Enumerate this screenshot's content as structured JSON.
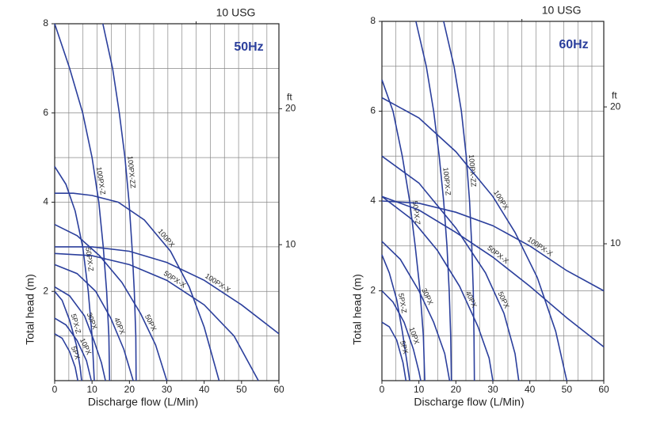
{
  "chart_data": [
    {
      "type": "line",
      "title": "50Hz",
      "x_label": "Discharge flow (L/Min)",
      "y_label": "Total head (m)",
      "y2_label": "ft",
      "xlim": [
        0,
        60
      ],
      "xticks": [
        0,
        10,
        20,
        30,
        40,
        50,
        60
      ],
      "ylim": [
        0,
        8
      ],
      "yticks": [
        2,
        4,
        6,
        8
      ],
      "ygrid": [
        1,
        2,
        3,
        4,
        5,
        6,
        7
      ],
      "x2lim": [
        0,
        15.85
      ],
      "x2ticks": [
        {
          "value": 10,
          "label": "10 USG"
        }
      ],
      "x2grid": [
        1,
        2,
        3,
        4,
        5,
        6,
        7,
        8,
        9,
        10,
        11,
        12,
        13,
        14,
        15
      ],
      "y2lim": [
        0,
        26.25
      ],
      "y2ticks": [
        10,
        20
      ],
      "series": [
        {
          "name": "100PX-ZZ",
          "color": "#2b3f9c",
          "x": [
            12.9,
            15.5,
            17.3,
            18.8,
            19.9,
            20.7,
            21.3,
            21.7,
            21.8
          ],
          "values": [
            8,
            7,
            6,
            5,
            4,
            3,
            2,
            1,
            0
          ]
        },
        {
          "name": "100PX-Z",
          "color": "#2b3f9c",
          "x": [
            0,
            4,
            7.5,
            10,
            11.8,
            13,
            13.9,
            14.5,
            14.7
          ],
          "values": [
            8,
            7,
            6,
            5,
            4,
            3,
            2,
            1,
            0
          ]
        },
        {
          "name": "50PX-Z",
          "color": "#2b3f9c",
          "x": [
            0,
            3,
            5.5,
            7.5,
            9,
            10,
            10.6
          ],
          "values": [
            4.8,
            4.4,
            3.8,
            3,
            2,
            1,
            0
          ]
        },
        {
          "name": "100PX",
          "color": "#2b3f9c",
          "x": [
            0,
            5,
            10,
            17,
            24,
            31,
            36,
            40,
            43,
            44
          ],
          "values": [
            4.2,
            4.2,
            4.15,
            4,
            3.6,
            2.9,
            2.1,
            1.2,
            0.3,
            0
          ]
        },
        {
          "name": "100PX-X",
          "color": "#2b3f9c",
          "x": [
            0,
            10,
            20,
            30,
            40,
            50,
            60
          ],
          "values": [
            3,
            3,
            2.9,
            2.65,
            2.25,
            1.7,
            1.05
          ]
        },
        {
          "name": "50PX-X",
          "color": "#2b3f9c",
          "x": [
            0,
            10,
            20,
            30,
            40,
            48,
            54.5
          ],
          "values": [
            2.85,
            2.8,
            2.6,
            2.25,
            1.7,
            1,
            0
          ]
        },
        {
          "name": "50PX",
          "color": "#2b3f9c",
          "x": [
            0,
            6,
            12,
            18,
            23,
            27,
            30
          ],
          "values": [
            3.5,
            3.25,
            2.8,
            2.2,
            1.5,
            0.8,
            0
          ]
        },
        {
          "name": "40PX",
          "color": "#2b3f9c",
          "x": [
            0,
            6,
            11,
            15,
            18.5,
            21
          ],
          "values": [
            2.6,
            2.4,
            2,
            1.4,
            0.7,
            0
          ]
        },
        {
          "name": "30PX",
          "color": "#2b3f9c",
          "x": [
            0,
            4,
            8,
            10.5,
            12.5,
            13.6
          ],
          "values": [
            2.1,
            1.9,
            1.45,
            0.9,
            0.4,
            0
          ]
        },
        {
          "name": "5PX-Z",
          "color": "#2b3f9c",
          "x": [
            0,
            2,
            4,
            5.8,
            6.8,
            7.2
          ],
          "values": [
            2,
            1.8,
            1.35,
            0.8,
            0.3,
            0
          ]
        },
        {
          "name": "10PX",
          "color": "#2b3f9c",
          "x": [
            0,
            3,
            6,
            8.5,
            9.8
          ],
          "values": [
            1.4,
            1.25,
            0.9,
            0.45,
            0
          ]
        },
        {
          "name": "5PX",
          "color": "#2b3f9c",
          "x": [
            0,
            2,
            4,
            5.5,
            6.2
          ],
          "values": [
            1.05,
            0.95,
            0.65,
            0.3,
            0
          ]
        }
      ]
    },
    {
      "type": "line",
      "title": "60Hz",
      "x_label": "Discharge flow (L/Min)",
      "y_label": "Total head (m)",
      "y2_label": "ft",
      "xlim": [
        0,
        60
      ],
      "xticks": [
        0,
        10,
        20,
        30,
        40,
        50,
        60
      ],
      "ylim": [
        0,
        8
      ],
      "yticks": [
        2,
        4,
        6,
        8
      ],
      "ygrid": [
        1,
        2,
        3,
        4,
        5,
        6,
        7
      ],
      "x2lim": [
        0,
        15.85
      ],
      "x2ticks": [
        {
          "value": 10,
          "label": "10 USG"
        }
      ],
      "x2grid": [
        1,
        2,
        3,
        4,
        5,
        6,
        7,
        8,
        9,
        10,
        11,
        12,
        13,
        14,
        15
      ],
      "y2lim": [
        0,
        26.25
      ],
      "y2ticks": [
        10,
        20
      ],
      "series": [
        {
          "name": "100PX-ZZ",
          "color": "#2b3f9c",
          "x": [
            16.7,
            19.5,
            21.5,
            22.8,
            23.7,
            24.3,
            24.7,
            24.9,
            25
          ],
          "values": [
            8,
            7,
            6,
            5,
            4,
            3,
            2,
            1,
            0
          ]
        },
        {
          "name": "100PX-Z",
          "color": "#2b3f9c",
          "x": [
            9.2,
            12,
            14,
            15.5,
            16.7,
            17.6,
            18.2,
            18.6,
            18.8
          ],
          "values": [
            8,
            7,
            6,
            5,
            4,
            3,
            2,
            1,
            0
          ]
        },
        {
          "name": "50PX-Z",
          "color": "#2b3f9c",
          "x": [
            0,
            3,
            5.5,
            7.5,
            9,
            10.3,
            11.2,
            11.6
          ],
          "values": [
            6.7,
            6,
            5,
            4,
            3,
            2,
            1,
            0
          ]
        },
        {
          "name": "100PX",
          "color": "#2b3f9c",
          "x": [
            0,
            10,
            20,
            30,
            36,
            42,
            47,
            50
          ],
          "values": [
            6.3,
            5.85,
            5.1,
            4.1,
            3.3,
            2.3,
            1.1,
            0
          ]
        },
        {
          "name": "100PX-X",
          "color": "#2b3f9c",
          "x": [
            0,
            10,
            20,
            30,
            40,
            50,
            60
          ],
          "values": [
            4,
            3.95,
            3.75,
            3.45,
            3,
            2.45,
            2
          ]
        },
        {
          "name": "50PX-X",
          "color": "#2b3f9c",
          "x": [
            0,
            10,
            20,
            30,
            40,
            50,
            60
          ],
          "values": [
            4.1,
            3.8,
            3.3,
            2.75,
            2.1,
            1.4,
            0.75
          ]
        },
        {
          "name": "50PX",
          "color": "#2b3f9c",
          "x": [
            0,
            10,
            20,
            28,
            33,
            36,
            37
          ],
          "values": [
            5,
            4.4,
            3.4,
            2.4,
            1.5,
            0.6,
            0
          ]
        },
        {
          "name": "40PX",
          "color": "#2b3f9c",
          "x": [
            0,
            8,
            15,
            21,
            26,
            29,
            30
          ],
          "values": [
            4.1,
            3.6,
            2.9,
            2.1,
            1.2,
            0.5,
            0
          ]
        },
        {
          "name": "30PX",
          "color": "#2b3f9c",
          "x": [
            0,
            5,
            10,
            14,
            17,
            18.3
          ],
          "values": [
            3.1,
            2.7,
            2,
            1.3,
            0.6,
            0
          ]
        },
        {
          "name": "5PX-Z",
          "color": "#2b3f9c",
          "x": [
            0,
            2,
            4,
            5.5,
            6.8,
            7.5
          ],
          "values": [
            2.8,
            2.4,
            1.8,
            1.1,
            0.4,
            0
          ]
        },
        {
          "name": "10PX",
          "color": "#2b3f9c",
          "x": [
            0,
            3,
            6,
            8.5,
            10,
            10.5
          ],
          "values": [
            2,
            1.75,
            1.3,
            0.7,
            0.2,
            0
          ]
        },
        {
          "name": "5PX",
          "color": "#2b3f9c",
          "x": [
            0,
            2,
            4,
            5.7,
            6.5
          ],
          "values": [
            1.3,
            1.2,
            0.9,
            0.4,
            0
          ]
        }
      ]
    }
  ]
}
